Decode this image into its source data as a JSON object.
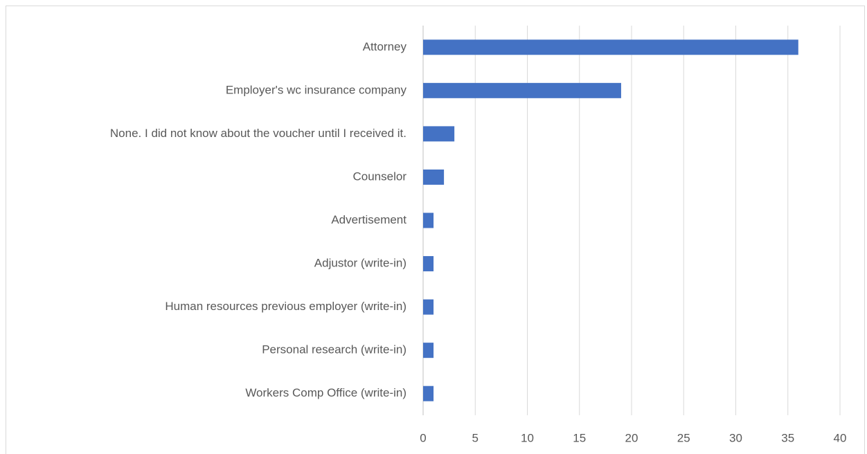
{
  "chart_data": {
    "type": "bar",
    "orientation": "horizontal",
    "categories": [
      "Attorney",
      "Employer's wc insurance company",
      "None. I did not know about the voucher until I received it.",
      "Counselor",
      "Advertisement",
      "Adjustor (write-in)",
      "Human resources previous employer (write-in)",
      "Personal research (write-in)",
      "Workers Comp Office (write-in)"
    ],
    "values": [
      36,
      19,
      3,
      2,
      1,
      1,
      1,
      1,
      1
    ],
    "color": "#4472c4",
    "xlim": [
      0,
      40
    ],
    "xticks": [
      0,
      5,
      10,
      15,
      20,
      25,
      30,
      35,
      40
    ],
    "grid": true
  }
}
